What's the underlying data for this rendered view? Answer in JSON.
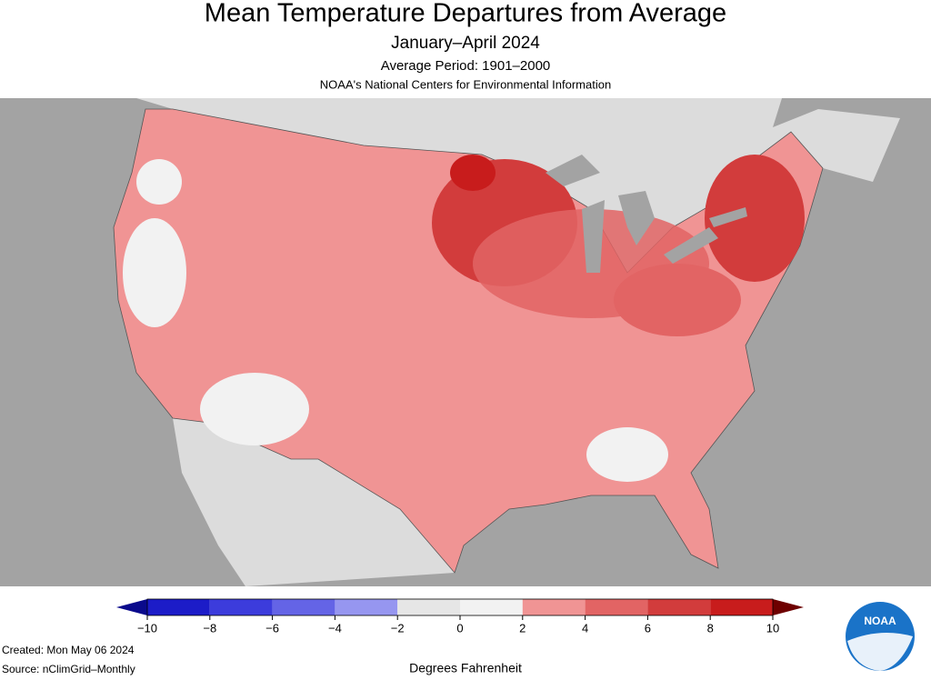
{
  "header": {
    "title": "Mean Temperature Departures from Average",
    "subtitle": "January–April 2024",
    "period": "Average Period: 1901–2000",
    "organization": "NOAA's National Centers for Environmental Information"
  },
  "legend": {
    "label": "Degrees Fahrenheit",
    "ticks": [
      {
        "value": -10,
        "label": "−10"
      },
      {
        "value": -8,
        "label": "−8"
      },
      {
        "value": -6,
        "label": "−6"
      },
      {
        "value": -4,
        "label": "−4"
      },
      {
        "value": -2,
        "label": "−2"
      },
      0,
      2,
      4,
      6,
      8,
      10
    ],
    "colors": [
      "#1c1cc8",
      "#3c3cdc",
      "#6464e6",
      "#9696f0",
      "#e6e6e6",
      "#f2f2f2",
      "#f09494",
      "#e26464",
      "#d23c3c",
      "#c81c1c"
    ],
    "under_color": "#0a0a8c",
    "over_color": "#6e0000"
  },
  "footer": {
    "created": "Created: Mon May 06 2024",
    "source": "Source: nClimGrid–Monthly"
  },
  "logo": {
    "text": "NOAA"
  }
}
